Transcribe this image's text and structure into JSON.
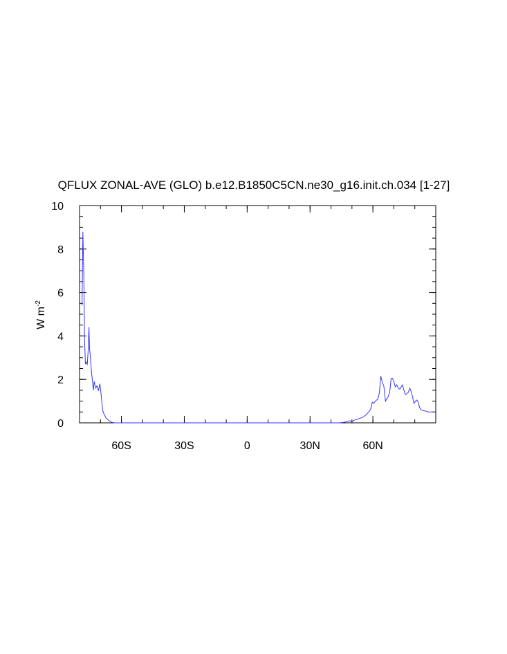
{
  "chart_data": {
    "type": "line",
    "title": "QFLUX ZONAL-AVE (GLO) b.e12.B1850C5CN.ne30_g16.init.ch.034 [1-27]",
    "ylabel_main": "W m",
    "ylabel_sup": "-2",
    "xlim": [
      -80,
      90
    ],
    "ylim": [
      0,
      10
    ],
    "x_ticks": [
      {
        "value": -60,
        "label": "60S"
      },
      {
        "value": -30,
        "label": "30S"
      },
      {
        "value": 0,
        "label": "0"
      },
      {
        "value": 30,
        "label": "30N"
      },
      {
        "value": 60,
        "label": "60N"
      }
    ],
    "y_ticks": [
      {
        "value": 0,
        "label": "0"
      },
      {
        "value": 2,
        "label": "2"
      },
      {
        "value": 4,
        "label": "4"
      },
      {
        "value": 6,
        "label": "6"
      },
      {
        "value": 8,
        "label": "8"
      },
      {
        "value": 10,
        "label": "10"
      }
    ],
    "series": [
      {
        "color": "#3333ff",
        "x": [
          -78.8,
          -78.4,
          -78.0,
          -77.6,
          -77.2,
          -76.8,
          -76.3,
          -75.9,
          -75.5,
          -75.2,
          -74.8,
          -74.3,
          -73.9,
          -73.4,
          -73.0,
          -72.3,
          -71.7,
          -71.0,
          -70.3,
          -69.7,
          -69.0,
          -68.5,
          -68.0,
          -67.7,
          -67.3,
          -66.6,
          -65.9,
          -65.2,
          -64.5,
          -63.8,
          -63.2,
          -62.5,
          -61.8,
          -61.2,
          -60.5,
          -59.8,
          -59.1,
          -58.5,
          -57.8,
          -57.1,
          -56.5,
          -55.8,
          -54.4,
          -53.1,
          -50,
          -40,
          -30,
          -20,
          -10,
          0,
          10,
          20,
          30,
          40,
          44.0,
          46.0,
          47.5,
          49.0,
          50.0,
          51.0,
          52.0,
          53.5,
          55.0,
          56.5,
          58.0,
          59.0,
          59.7,
          60.4,
          61.1,
          61.8,
          62.4,
          63.1,
          63.8,
          64.5,
          65.2,
          66.0,
          66.6,
          67.3,
          68.0,
          68.7,
          69.3,
          70.0,
          70.7,
          71.4,
          72.1,
          72.8,
          73.5,
          74.1,
          74.8,
          75.5,
          76.2,
          76.9,
          77.6,
          78.2,
          78.9,
          79.6,
          80.3,
          81.0,
          81.6,
          82.3,
          83.0,
          83.7,
          84.4,
          85.0,
          85.7,
          86.4,
          87.1,
          87.8,
          88.5,
          89.2
        ],
        "y": [
          5.4,
          8.8,
          7.0,
          3.8,
          2.7,
          2.8,
          2.7,
          3.3,
          4.4,
          3.4,
          3.0,
          2.3,
          2.0,
          1.5,
          1.9,
          1.6,
          1.7,
          1.5,
          1.8,
          1.3,
          0.6,
          0.45,
          0.35,
          0.28,
          0.22,
          0.16,
          0.1,
          0.05,
          0.02,
          0.01,
          0,
          0,
          0,
          0,
          0,
          0,
          0,
          0,
          0,
          0,
          0,
          0,
          0,
          0,
          0,
          0,
          0,
          0,
          0,
          0,
          0,
          0,
          0,
          0,
          0,
          0.02,
          0.05,
          0.1,
          0.05,
          0.12,
          0.15,
          0.2,
          0.25,
          0.35,
          0.5,
          0.65,
          0.95,
          0.9,
          1.0,
          1.05,
          1.1,
          1.4,
          2.15,
          1.85,
          1.7,
          1.0,
          1.1,
          1.2,
          1.4,
          2.05,
          2.05,
          1.9,
          1.65,
          1.75,
          1.6,
          1.55,
          1.65,
          1.75,
          1.5,
          1.3,
          1.35,
          1.4,
          1.6,
          1.45,
          1.2,
          0.9,
          1.0,
          1.05,
          0.95,
          0.7,
          0.6,
          0.58,
          0.55,
          0.55,
          0.52,
          0.5,
          0.5,
          0.5,
          0.5,
          0.5
        ]
      }
    ]
  }
}
